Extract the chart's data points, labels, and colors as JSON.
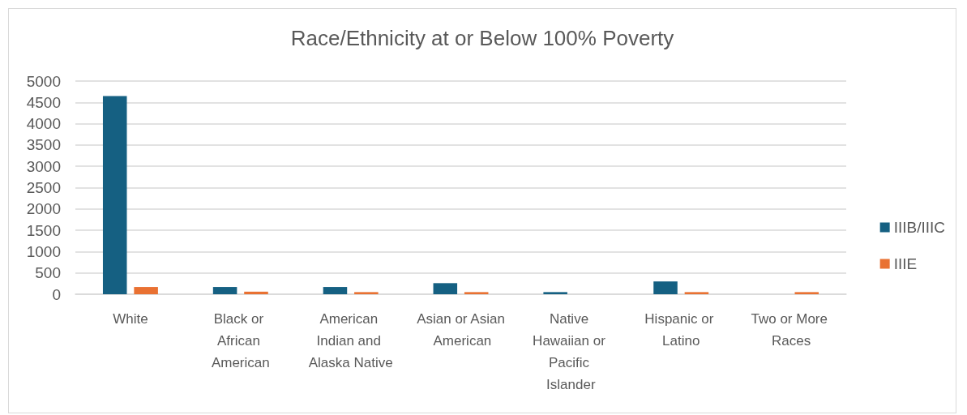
{
  "chart_data": {
    "type": "bar",
    "title": "Race/Ethnicity at or Below 100% Poverty",
    "categories": [
      "White",
      "Black or African American",
      "American Indian and Alaska Native",
      "Asian or Asian American",
      "Native Hawaiian or Pacific Islander",
      "Hispanic or Latino",
      "Two or More Races"
    ],
    "series": [
      {
        "name": "IIIB/IIIC",
        "color": "#156082",
        "values": [
          4650,
          170,
          170,
          260,
          50,
          300,
          null
        ]
      },
      {
        "name": "IIIE",
        "color": "#e97132",
        "values": [
          170,
          60,
          50,
          50,
          null,
          50,
          50
        ]
      }
    ],
    "ylim": [
      0,
      5000
    ],
    "yticks": [
      0,
      500,
      1000,
      1500,
      2000,
      2500,
      3000,
      3500,
      4000,
      4500,
      5000
    ],
    "grid": "y",
    "legend": "right"
  }
}
